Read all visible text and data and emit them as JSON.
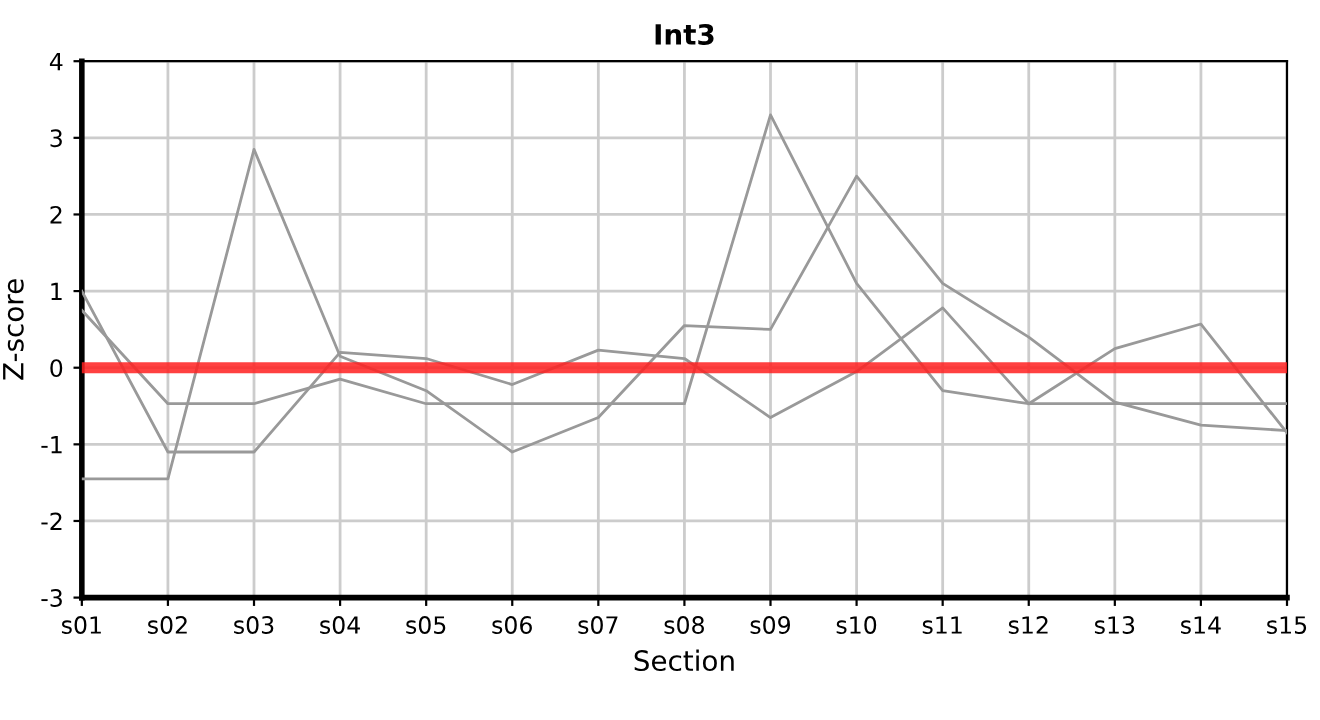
{
  "chart_data": {
    "type": "line",
    "title": "Int3",
    "xlabel": "Section",
    "ylabel": "Z-score",
    "categories": [
      "s01",
      "s02",
      "s03",
      "s04",
      "s05",
      "s06",
      "s07",
      "s08",
      "s09",
      "s10",
      "s11",
      "s12",
      "s13",
      "s14",
      "s15"
    ],
    "series": [
      {
        "color": "#999999",
        "values": [
          -1.45,
          -1.45,
          2.85,
          0.15,
          -0.3,
          -1.1,
          -0.65,
          0.55,
          0.5,
          2.5,
          1.1,
          0.4,
          -0.45,
          -0.75,
          -0.82
        ]
      },
      {
        "color": "#999999",
        "values": [
          0.75,
          -0.47,
          -0.47,
          -0.15,
          -0.47,
          -0.47,
          -0.47,
          -0.47,
          3.3,
          1.1,
          -0.3,
          -0.47,
          -0.47,
          -0.47,
          -0.47
        ]
      },
      {
        "color": "#999999",
        "values": [
          1.0,
          -1.1,
          -1.1,
          0.2,
          0.12,
          -0.22,
          0.23,
          0.12,
          -0.65,
          -0.05,
          0.78,
          -0.47,
          0.25,
          0.57,
          -0.85
        ]
      }
    ],
    "ylim": [
      -3,
      4
    ],
    "yticks": [
      -3,
      -2,
      -1,
      0,
      1,
      2,
      3,
      4
    ],
    "ref_lines": [
      {
        "axis": "y",
        "value": 0,
        "color": "#ff2020"
      }
    ],
    "grid": true
  }
}
